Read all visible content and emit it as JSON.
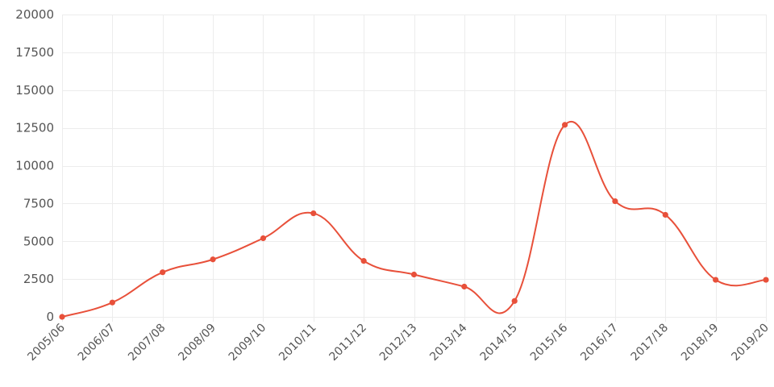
{
  "chart_data": {
    "type": "line",
    "title": "",
    "xlabel": "",
    "ylabel": "",
    "grid": true,
    "smooth": true,
    "color": "#e8503a",
    "ylim": [
      0,
      20000
    ],
    "yticks": [
      0,
      2500,
      5000,
      7500,
      10000,
      12500,
      15000,
      17500,
      20000
    ],
    "categories": [
      "2005/06",
      "2006/07",
      "2007/08",
      "2008/09",
      "2009/10",
      "2010/11",
      "2011/12",
      "2012/13",
      "2013/14",
      "2014/15",
      "2015/16",
      "2016/17",
      "2017/18",
      "2018/19",
      "2019/20"
    ],
    "values": [
      0,
      950,
      2950,
      3800,
      5200,
      6850,
      3700,
      2800,
      2000,
      1050,
      12700,
      7650,
      6750,
      2450,
      2450
    ]
  }
}
